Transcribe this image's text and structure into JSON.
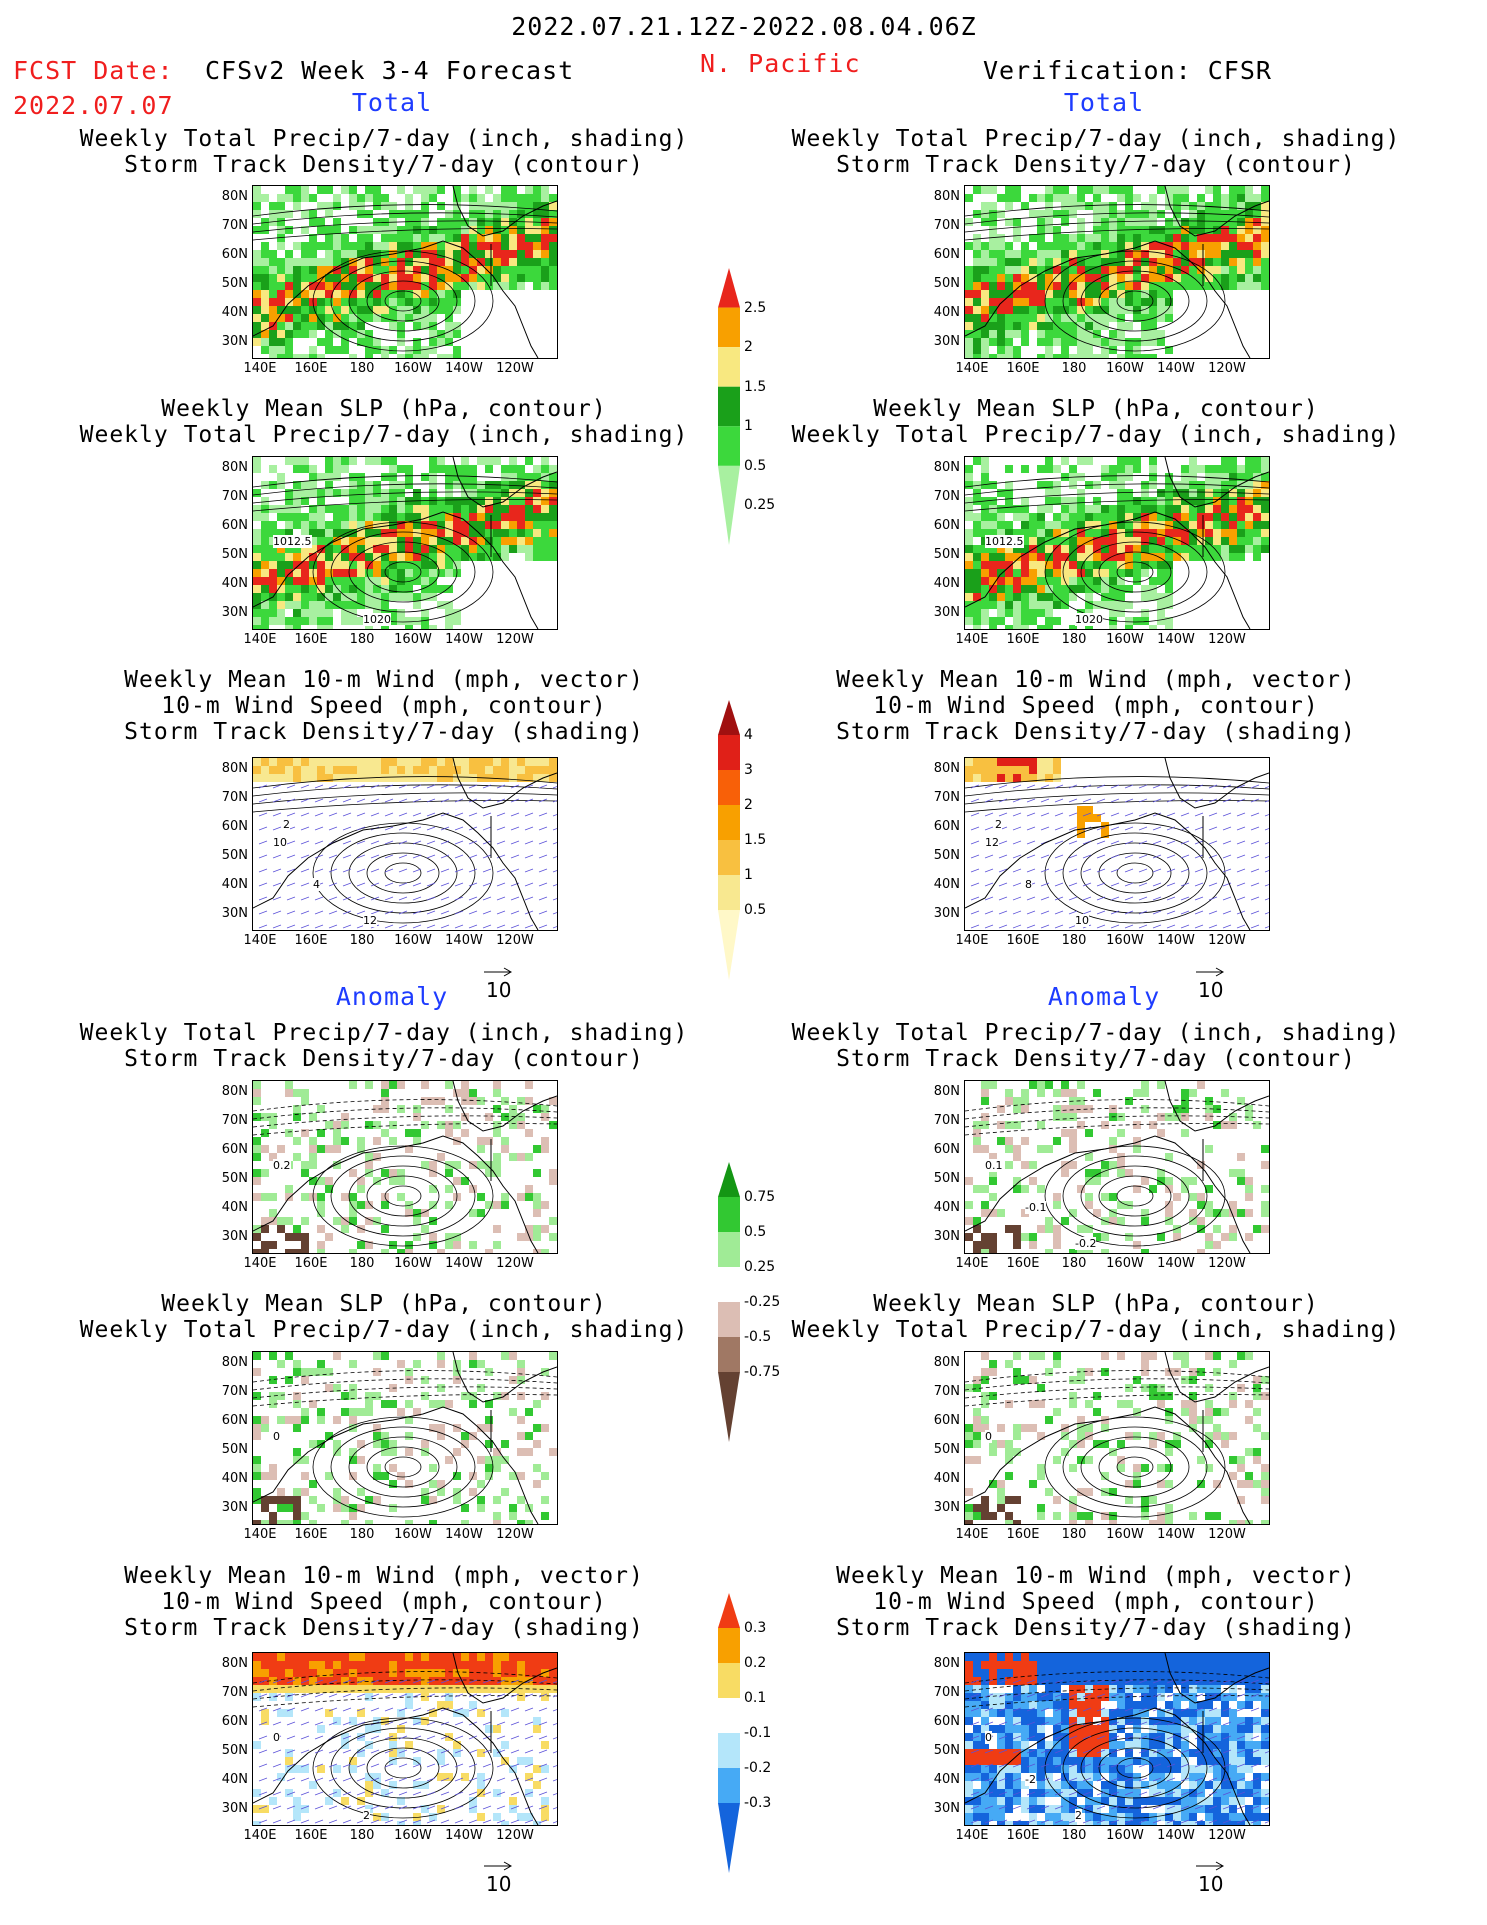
{
  "header": {
    "date_range": "2022.07.21.12Z-2022.08.04.06Z",
    "fcst_label": "FCST Date:",
    "fcst_date": "2022.07.07",
    "forecast_title": "CFSv2 Week 3-4 Forecast",
    "region": "N. Pacific",
    "verification": "Verification: CFSR"
  },
  "sections": {
    "total": "Total",
    "anomaly": "Anomaly"
  },
  "titles": {
    "precip": [
      "Weekly Total Precip/7-day (inch, shading)",
      "Storm Track Density/7-day (contour)"
    ],
    "slp": [
      "Weekly Mean SLP (hPa, contour)",
      "Weekly Total Precip/7-day (inch, shading)"
    ],
    "wind": [
      "Weekly Mean 10-m Wind (mph, vector)",
      "10-m Wind Speed (mph, contour)",
      "Storm Track Density/7-day (shading)"
    ]
  },
  "axes": {
    "lat_labels": [
      "80N",
      "70N",
      "60N",
      "50N",
      "40N",
      "30N"
    ],
    "lon_labels": [
      "140E",
      "160E",
      "180",
      "160W",
      "140W",
      "120W"
    ]
  },
  "map_labels": {
    "fc_slp_total": [
      "1012.5",
      "1020"
    ],
    "ob_slp_total": [
      "1012.5",
      "1020"
    ],
    "fc_wind_total": [
      "10",
      "12",
      "4",
      "2"
    ],
    "ob_wind_total": [
      "12",
      "10",
      "8",
      "2"
    ],
    "fc_precip_anom": [
      "0.2"
    ],
    "ob_precip_anom": [
      "0.1",
      "-0.2",
      "-0.1"
    ],
    "fc_slp_anom": [
      "0"
    ],
    "ob_slp_anom": [
      "0"
    ],
    "fc_wind_anom": [
      "0",
      "2"
    ],
    "ob_wind_anom": [
      "0",
      "2",
      "-2"
    ]
  },
  "vector_ref": "10",
  "colorbars": {
    "precip_total": {
      "labels": [
        "2.5",
        "2",
        "1.5",
        "1",
        "0.5",
        "0.25"
      ],
      "colors": [
        "#e8261c",
        "#f8a000",
        "#f8e880",
        "#1aa01a",
        "#3cd83c",
        "#a8f0a0"
      ]
    },
    "storm_total": {
      "labels": [
        "4",
        "3",
        "2",
        "1.5",
        "1",
        "0.5"
      ],
      "colors": [
        "#a01010",
        "#e02018",
        "#f86008",
        "#f8a000",
        "#f8c040",
        "#f8e890",
        "#fff8c8"
      ]
    },
    "precip_anom": {
      "labels": [
        "0.75",
        "0.5",
        "0.25",
        "-0.25",
        "-0.5",
        "-0.75"
      ],
      "colors": [
        "#149614",
        "#32c832",
        "#a0eb96",
        "#ffffff",
        "#dcbeb4",
        "#a07864",
        "#644132"
      ]
    },
    "storm_anom": {
      "labels": [
        "0.3",
        "0.2",
        "0.1",
        "-0.1",
        "-0.2",
        "-0.3"
      ],
      "colors": [
        "#f03c14",
        "#f8a000",
        "#f8dc64",
        "#ffffff",
        "#b4e6fa",
        "#46aaf5",
        "#1464dc"
      ]
    }
  }
}
